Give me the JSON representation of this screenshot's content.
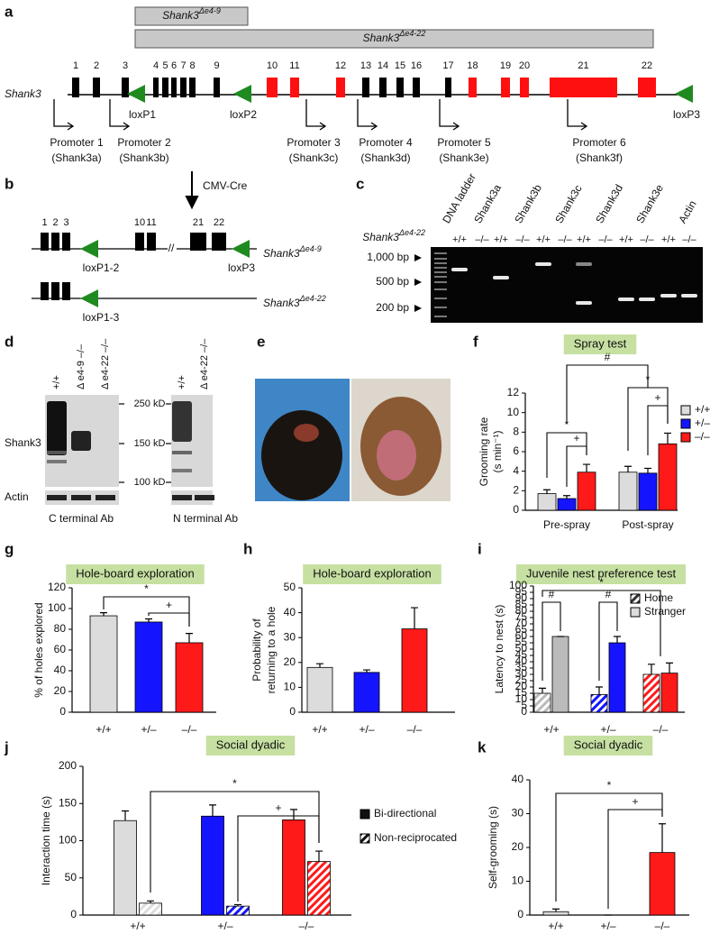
{
  "panel_labels": [
    "a",
    "b",
    "c",
    "d",
    "e",
    "f",
    "g",
    "h",
    "i",
    "j",
    "k"
  ],
  "a": {
    "deletions": [
      {
        "gene": "Shank3",
        "sup": "Δe4-9"
      },
      {
        "gene": "Shank3",
        "sup": "Δe4-22"
      }
    ],
    "gene": "Shank3",
    "exons": [
      "1",
      "2",
      "3",
      "4",
      "5",
      "6",
      "7",
      "8",
      "9",
      "10",
      "11",
      "12",
      "13",
      "14",
      "15",
      "16",
      "17",
      "18",
      "19",
      "20",
      "21",
      "22"
    ],
    "loxp": [
      "loxP1",
      "loxP2",
      "loxP3"
    ],
    "promoters": [
      [
        "Promoter 1",
        "(Shank3a)"
      ],
      [
        "Promoter 2",
        "(Shank3b)"
      ],
      [
        "Promoter 3",
        "(Shank3c)"
      ],
      [
        "Promoter 4",
        "(Shank3d)"
      ],
      [
        "Promoter 5",
        "(Shank3e)"
      ],
      [
        "Promoter 6",
        "(Shank3f)"
      ]
    ]
  },
  "b": {
    "cre": "CMV-Cre",
    "exons_top": [
      "1",
      "2",
      "3",
      "10",
      "11",
      "21",
      "22"
    ],
    "loxp_top": [
      "loxP1-2",
      "loxP3"
    ],
    "allele_top": {
      "gene": "Shank3",
      "sup": "Δe4-9"
    },
    "loxp_bottom": "loxP1-3",
    "allele_bottom": {
      "gene": "Shank3",
      "sup": "Δe4-22"
    }
  },
  "c": {
    "lanes": [
      "DNA ladder",
      "Shank3a",
      "Shank3b",
      "Shank3c",
      "Shank3d",
      "Shank3e",
      "Actin"
    ],
    "allele": {
      "gene": "Shank3",
      "sup": "Δe4-22"
    },
    "genotypes": [
      "+/+",
      "–/–"
    ],
    "markers": [
      "1,000 bp",
      "500 bp",
      "200 bp"
    ]
  },
  "d": {
    "left_lanes": [
      "+/+",
      "Δ e4-9 –/–",
      "Δ e4-22 –/–"
    ],
    "right_lanes": [
      "+/+",
      "Δ e4-22 –/–"
    ],
    "markers": [
      "250 kD",
      "150 kD",
      "100 kD"
    ],
    "rows": [
      "Shank3",
      "Actin"
    ],
    "antibodies": [
      "C terminal Ab",
      "N terminal Ab"
    ]
  },
  "chart_data": [
    {
      "type": "bar",
      "title": "Spray test",
      "ylabel": [
        "Grooming rate",
        "(s min⁻¹)"
      ],
      "categories": [
        "Pre-spray",
        "Post-spray"
      ],
      "series": [
        {
          "name": "+/+",
          "color": "#dcdcdc",
          "values": [
            1.7,
            3.9
          ],
          "errors": [
            0.4,
            0.6
          ]
        },
        {
          "name": "+/–",
          "color": "#1414ff",
          "values": [
            1.2,
            3.8
          ],
          "errors": [
            0.3,
            0.5
          ]
        },
        {
          "name": "–/–",
          "color": "#ff1a1a",
          "values": [
            3.9,
            6.8
          ],
          "errors": [
            0.8,
            1.1
          ]
        }
      ],
      "ylim": [
        0,
        12
      ],
      "yticks": [
        0,
        2,
        4,
        6,
        8,
        10,
        12
      ],
      "annotations": [
        "#",
        "*",
        "+",
        "*",
        "+"
      ]
    },
    {
      "type": "bar",
      "title": "Hole-board exploration",
      "ylabel": [
        "% of holes explored"
      ],
      "categories": [
        "+/+",
        "+/–",
        "–/–"
      ],
      "colors": [
        "#dcdcdc",
        "#1414ff",
        "#ff1a1a"
      ],
      "values": [
        93,
        87,
        67
      ],
      "errors": [
        3,
        3,
        9
      ],
      "ylim": [
        0,
        120
      ],
      "yticks": [
        0,
        20,
        40,
        60,
        80,
        100,
        120
      ],
      "annotations": [
        "*",
        "+"
      ]
    },
    {
      "type": "bar",
      "title": "Hole-board exploration",
      "ylabel": [
        "Probability of",
        "returning to a hole"
      ],
      "categories": [
        "+/+",
        "+/–",
        "–/–"
      ],
      "colors": [
        "#dcdcdc",
        "#1414ff",
        "#ff1a1a"
      ],
      "values": [
        18,
        16,
        33.5
      ],
      "errors": [
        1.5,
        1,
        8.5
      ],
      "ylim": [
        0,
        50
      ],
      "yticks": [
        0,
        10,
        20,
        30,
        40,
        50
      ]
    },
    {
      "type": "bar",
      "title": "Juvenile nest preference test",
      "ylabel": [
        "Latency to nest (s)"
      ],
      "categories": [
        "+/+",
        "+/–",
        "–/–"
      ],
      "colors": [
        "#bbbbbb",
        "#1414ff",
        "#ff1a1a"
      ],
      "series": [
        {
          "name": "Home",
          "color": "#333333",
          "hatch": true,
          "values": [
            15,
            14,
            30
          ],
          "errors": [
            4,
            6,
            8
          ]
        },
        {
          "name": "Stranger",
          "color": "#dcdcdc",
          "hatch": false,
          "values": [
            60,
            55,
            31
          ],
          "errors": [
            0,
            5,
            8
          ]
        }
      ],
      "ylim": [
        0,
        100
      ],
      "yticks": [
        0,
        5,
        10,
        15,
        20,
        25,
        30,
        35,
        40,
        45,
        50,
        55,
        60,
        65,
        70,
        75,
        80,
        85,
        90,
        95,
        100
      ],
      "annotations": [
        "#",
        "#",
        "*"
      ]
    },
    {
      "type": "bar",
      "title": "Social dyadic",
      "ylabel": [
        "Interaction time (s)"
      ],
      "categories": [
        "+/+",
        "+/–",
        "–/–"
      ],
      "colors": [
        "#dcdcdc",
        "#1414ff",
        "#ff1a1a"
      ],
      "series": [
        {
          "name": "Bi-directional",
          "color": "#111111",
          "hatch": false,
          "values": [
            127,
            133,
            128
          ],
          "errors": [
            13,
            15,
            14
          ]
        },
        {
          "name": "Non-reciprocated",
          "color": "#111111",
          "hatch": true,
          "values": [
            16,
            12,
            72
          ],
          "errors": [
            3,
            2,
            14
          ]
        }
      ],
      "ylim": [
        0,
        200
      ],
      "yticks": [
        0,
        50,
        100,
        150,
        200
      ],
      "annotations": [
        "*",
        "+"
      ]
    },
    {
      "type": "bar",
      "title": "Social dyadic",
      "ylabel": [
        "Self-grooming (s)"
      ],
      "categories": [
        "+/+",
        "+/–",
        "–/–"
      ],
      "colors": [
        "#dcdcdc",
        "#1414ff",
        "#ff1a1a"
      ],
      "values": [
        1,
        0,
        18.5
      ],
      "errors": [
        0.8,
        0,
        8.5
      ],
      "ylim": [
        0,
        40
      ],
      "yticks": [
        0,
        10,
        20,
        30,
        40
      ],
      "annotations": [
        "*",
        "+"
      ]
    }
  ]
}
